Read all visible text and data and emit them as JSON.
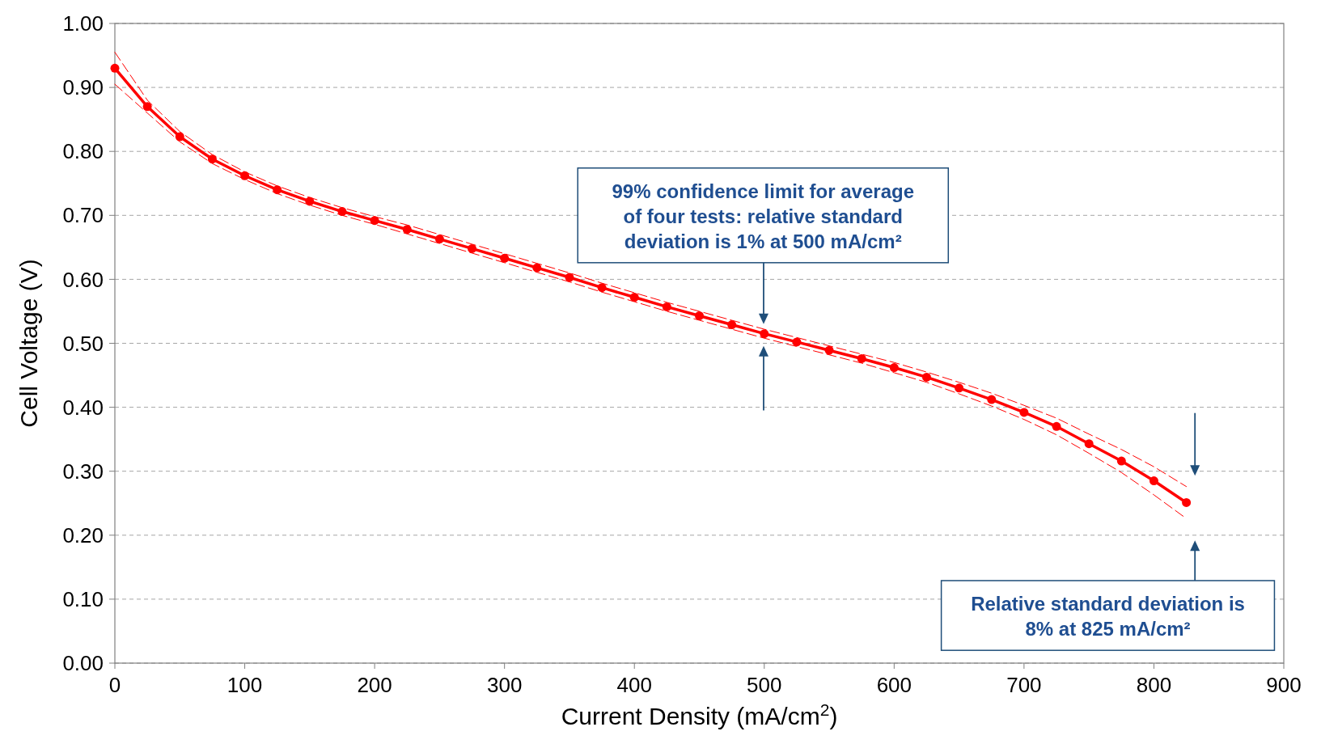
{
  "chart_data": {
    "type": "line",
    "xlabel": "Current Density (mA/cm$^{2}$)",
    "ylabel": "Cell Voltage (V)",
    "x": [
      0,
      25,
      50,
      75,
      100,
      125,
      150,
      175,
      200,
      225,
      250,
      275,
      300,
      325,
      350,
      375,
      400,
      425,
      450,
      475,
      500,
      525,
      550,
      575,
      600,
      625,
      650,
      675,
      700,
      725,
      750,
      775,
      800,
      825
    ],
    "series": [
      {
        "color": "#ff0000",
        "values": [
          0.93,
          0.87,
          0.823,
          0.788,
          0.762,
          0.74,
          0.722,
          0.706,
          0.692,
          0.678,
          0.663,
          0.648,
          0.633,
          0.618,
          0.603,
          0.587,
          0.572,
          0.557,
          0.543,
          0.529,
          0.515,
          0.502,
          0.489,
          0.476,
          0.462,
          0.447,
          0.43,
          0.412,
          0.392,
          0.37,
          0.343,
          0.316,
          0.285,
          0.251
        ]
      },
      {
        "color": "#ff0000",
        "marker": "none",
        "line_style": "dashed",
        "values": [
          0.905,
          0.86,
          0.815,
          0.781,
          0.756,
          0.734,
          0.716,
          0.7,
          0.686,
          0.671,
          0.656,
          0.641,
          0.626,
          0.611,
          0.596,
          0.58,
          0.565,
          0.55,
          0.536,
          0.522,
          0.508,
          0.495,
          0.482,
          0.469,
          0.454,
          0.439,
          0.421,
          0.402,
          0.381,
          0.357,
          0.328,
          0.298,
          0.263,
          0.226
        ]
      },
      {
        "color": "#ff0000",
        "marker": "none",
        "line_style": "dashed",
        "values": [
          0.955,
          0.88,
          0.831,
          0.795,
          0.768,
          0.746,
          0.728,
          0.712,
          0.698,
          0.685,
          0.67,
          0.655,
          0.64,
          0.625,
          0.61,
          0.594,
          0.579,
          0.564,
          0.55,
          0.536,
          0.522,
          0.509,
          0.496,
          0.483,
          0.47,
          0.455,
          0.439,
          0.422,
          0.403,
          0.383,
          0.358,
          0.334,
          0.307,
          0.276
        ]
      }
    ],
    "xlim": [
      0,
      900
    ],
    "xticks": [
      0,
      100,
      200,
      300,
      400,
      500,
      600,
      700,
      800,
      900
    ],
    "ylim": [
      0,
      1
    ],
    "yticks": [
      {
        "value": 0,
        "label": "0.00"
      },
      {
        "value": 0.1,
        "label": "0.10"
      },
      {
        "value": 0.2,
        "label": "0.20"
      },
      {
        "value": 0.3,
        "label": "0.30"
      },
      {
        "value": 0.4,
        "label": "0.40"
      },
      {
        "value": 0.5,
        "label": "0.50"
      },
      {
        "value": 0.6,
        "label": "0.60"
      },
      {
        "value": 0.7,
        "label": "0.70"
      },
      {
        "value": 0.8,
        "label": "0.80"
      },
      {
        "value": 0.9,
        "label": "0.90"
      },
      {
        "value": 1,
        "label": "1.00"
      }
    ],
    "grid": "y",
    "marker": "circle",
    "line_style": "solid",
    "annotations": [
      "99% confidence limit for average of four tests: relative standard deviation is 1% at 500 mA/cm²",
      "Relative standard deviation is 8% at 825 mA/cm²"
    ]
  }
}
